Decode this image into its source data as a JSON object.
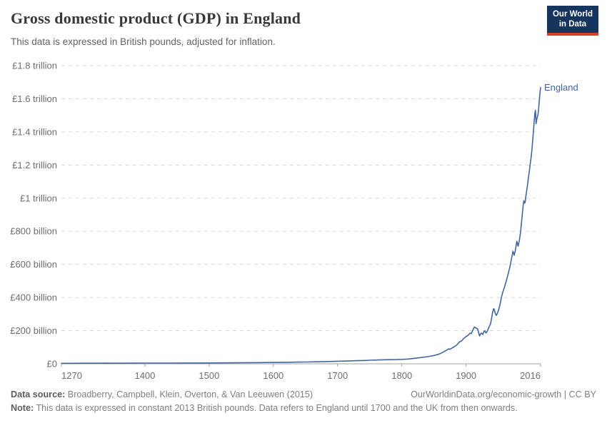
{
  "header": {
    "title": "Gross domestic product (GDP) in England",
    "subtitle": "This data is expressed in British pounds, adjusted for inflation.",
    "logo": {
      "line1": "Our World",
      "line2": "in Data",
      "bg_color": "#16355e",
      "accent_color": "#dc3d30"
    }
  },
  "chart_data": {
    "type": "line",
    "title": "Gross domestic product (GDP) in England",
    "subtitle": "This data is expressed in British pounds, adjusted for inflation.",
    "unit": "British pounds, constant 2013 prices",
    "xlabel": "",
    "ylabel": "",
    "xlim": [
      1270,
      2016
    ],
    "ylim_bn": [
      0,
      1800
    ],
    "grid": "horizontal-dashed",
    "legend_position": "end-of-line",
    "axis_color": "#a3a3a3",
    "gridline_color": "#dadada",
    "tick_label_color": "#6e6e6e",
    "x_ticks": [
      {
        "year": 1270,
        "label": "1270",
        "align": "start"
      },
      {
        "year": 1400,
        "label": "1400",
        "align": "middle"
      },
      {
        "year": 1500,
        "label": "1500",
        "align": "middle"
      },
      {
        "year": 1600,
        "label": "1600",
        "align": "middle"
      },
      {
        "year": 1700,
        "label": "1700",
        "align": "middle"
      },
      {
        "year": 1800,
        "label": "1800",
        "align": "middle"
      },
      {
        "year": 1900,
        "label": "1900",
        "align": "middle"
      },
      {
        "year": 2016,
        "label": "2016",
        "align": "end"
      }
    ],
    "y_ticks": [
      {
        "value_bn": 0,
        "label": "£0"
      },
      {
        "value_bn": 200,
        "label": "£200 billion"
      },
      {
        "value_bn": 400,
        "label": "£400 billion"
      },
      {
        "value_bn": 600,
        "label": "£600 billion"
      },
      {
        "value_bn": 800,
        "label": "£800 billion"
      },
      {
        "value_bn": 1000,
        "label": "£1 trillion"
      },
      {
        "value_bn": 1200,
        "label": "£1.2 trillion"
      },
      {
        "value_bn": 1400,
        "label": "£1.4 trillion"
      },
      {
        "value_bn": 1600,
        "label": "£1.6 trillion"
      },
      {
        "value_bn": 1800,
        "label": "£1.8 trillion"
      }
    ],
    "series": [
      {
        "name": "England",
        "color": "#44669f",
        "points_year_bn": [
          [
            1270,
            3
          ],
          [
            1280,
            3.2
          ],
          [
            1290,
            3.1
          ],
          [
            1300,
            3.5
          ],
          [
            1310,
            3.3
          ],
          [
            1320,
            3.6
          ],
          [
            1330,
            3.4
          ],
          [
            1340,
            3.7
          ],
          [
            1348,
            3.3
          ],
          [
            1360,
            3.5
          ],
          [
            1380,
            3.8
          ],
          [
            1400,
            4.2
          ],
          [
            1420,
            4.3
          ],
          [
            1440,
            4.5
          ],
          [
            1460,
            4.7
          ],
          [
            1480,
            4.9
          ],
          [
            1500,
            5.2
          ],
          [
            1520,
            5.6
          ],
          [
            1540,
            6.1
          ],
          [
            1560,
            6.7
          ],
          [
            1580,
            7.4
          ],
          [
            1600,
            8.2
          ],
          [
            1620,
            9.2
          ],
          [
            1640,
            10.3
          ],
          [
            1650,
            10.8
          ],
          [
            1660,
            11.8
          ],
          [
            1680,
            13.2
          ],
          [
            1700,
            15.5
          ],
          [
            1710,
            16.5
          ],
          [
            1720,
            17.8
          ],
          [
            1730,
            18.8
          ],
          [
            1740,
            20
          ],
          [
            1750,
            21.5
          ],
          [
            1760,
            23
          ],
          [
            1770,
            24.2
          ],
          [
            1780,
            25
          ],
          [
            1790,
            25.6
          ],
          [
            1800,
            26.5
          ],
          [
            1810,
            29
          ],
          [
            1820,
            33
          ],
          [
            1830,
            38
          ],
          [
            1840,
            43
          ],
          [
            1850,
            50
          ],
          [
            1855,
            55
          ],
          [
            1860,
            62
          ],
          [
            1865,
            72
          ],
          [
            1870,
            83
          ],
          [
            1873,
            90
          ],
          [
            1875,
            88
          ],
          [
            1880,
            100
          ],
          [
            1885,
            112
          ],
          [
            1890,
            133
          ],
          [
            1893,
            138
          ],
          [
            1896,
            152
          ],
          [
            1900,
            165
          ],
          [
            1903,
            172
          ],
          [
            1906,
            185
          ],
          [
            1908,
            182
          ],
          [
            1910,
            200
          ],
          [
            1913,
            222
          ],
          [
            1916,
            215
          ],
          [
            1918,
            210
          ],
          [
            1919,
            195
          ],
          [
            1921,
            168
          ],
          [
            1922,
            178
          ],
          [
            1924,
            185
          ],
          [
            1926,
            177
          ],
          [
            1928,
            195
          ],
          [
            1929,
            200
          ],
          [
            1931,
            186
          ],
          [
            1933,
            196
          ],
          [
            1935,
            215
          ],
          [
            1937,
            232
          ],
          [
            1938,
            240
          ],
          [
            1940,
            278
          ],
          [
            1941,
            305
          ],
          [
            1943,
            333
          ],
          [
            1944,
            327
          ],
          [
            1945,
            310
          ],
          [
            1947,
            292
          ],
          [
            1949,
            306
          ],
          [
            1951,
            330
          ],
          [
            1953,
            360
          ],
          [
            1955,
            400
          ],
          [
            1957,
            430
          ],
          [
            1960,
            465
          ],
          [
            1963,
            505
          ],
          [
            1966,
            550
          ],
          [
            1968,
            580
          ],
          [
            1970,
            620
          ],
          [
            1971,
            640
          ],
          [
            1973,
            680
          ],
          [
            1975,
            655
          ],
          [
            1977,
            690
          ],
          [
            1979,
            740
          ],
          [
            1981,
            710
          ],
          [
            1983,
            745
          ],
          [
            1985,
            800
          ],
          [
            1987,
            880
          ],
          [
            1989,
            960
          ],
          [
            1990,
            985
          ],
          [
            1991,
            970
          ],
          [
            1992,
            975
          ],
          [
            1993,
            1010
          ],
          [
            1995,
            1060
          ],
          [
            1997,
            1120
          ],
          [
            2000,
            1210
          ],
          [
            2002,
            1270
          ],
          [
            2004,
            1360
          ],
          [
            2006,
            1460
          ],
          [
            2007,
            1510
          ],
          [
            2008,
            1530
          ],
          [
            2009,
            1450
          ],
          [
            2010,
            1475
          ],
          [
            2012,
            1505
          ],
          [
            2013,
            1540
          ],
          [
            2014,
            1590
          ],
          [
            2015,
            1635
          ],
          [
            2016,
            1668
          ]
        ]
      }
    ]
  },
  "footer": {
    "source_label": "Data source:",
    "source_text": " Broadberry, Campbell, Klein, Overton, & Van Leeuwen (2015)",
    "link_text": "OurWorldinData.org/economic-growth | CC BY",
    "note_label": "Note:",
    "note_text": " This data is expressed in constant 2013 British pounds. Data refers to England until 1700 and the UK from then onwards."
  }
}
